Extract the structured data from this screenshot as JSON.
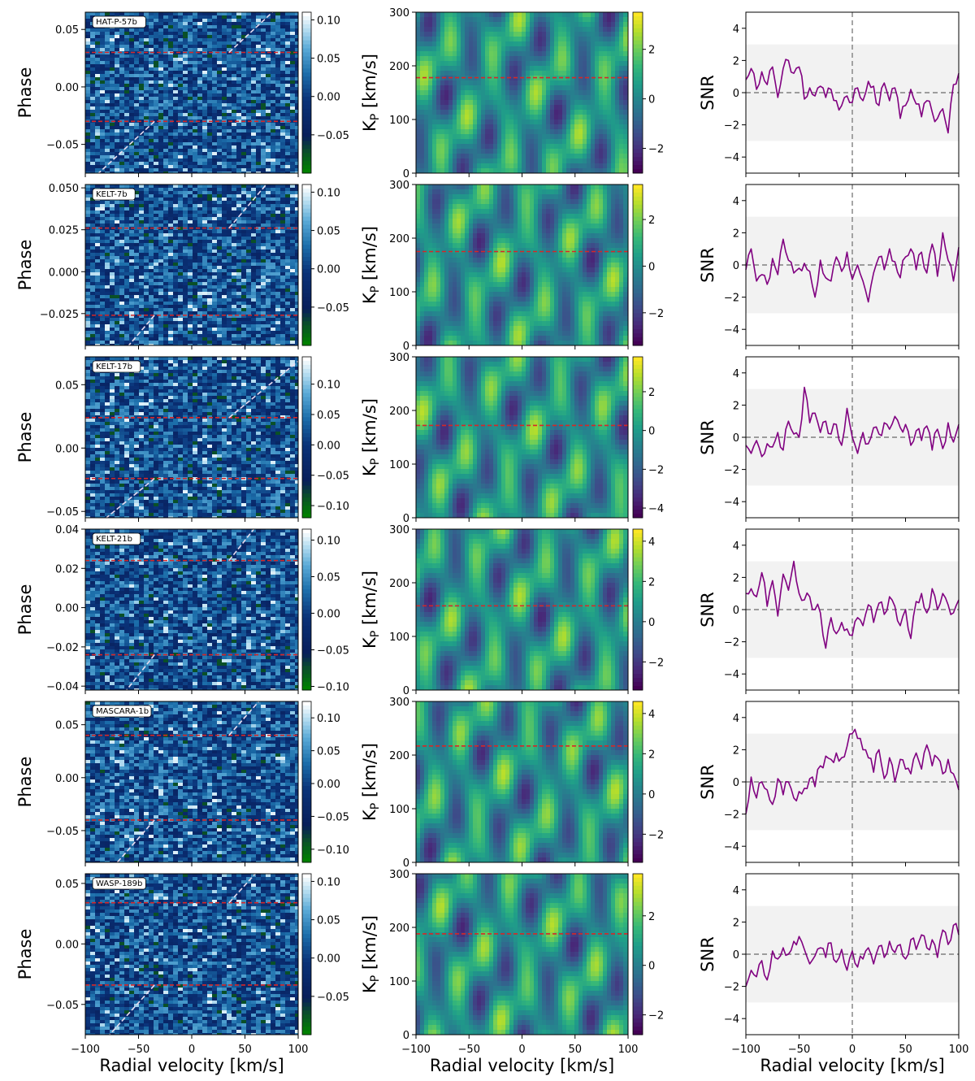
{
  "chart_data": {
    "type": "heatmap",
    "description_columns": [
      "Phase vs radial velocity residual map",
      "Kp vs radial velocity SNR map",
      "SNR vs radial velocity at expected Kp"
    ],
    "xlabel": "Radial velocity [km/s]",
    "xticks": [
      "−100",
      "−50",
      "0",
      "50",
      "100"
    ],
    "xlim": [
      -100,
      100
    ],
    "kp_ylabel": "K",
    "kp_ylabel_sub": "P",
    "kp_ylabel_unit": " [km/s]",
    "kp_ylim": [
      0,
      300
    ],
    "kp_yticks": [
      "0",
      "100",
      "200",
      "300"
    ],
    "snr_ylabel": "SNR",
    "snr_ylim": [
      -5,
      5
    ],
    "snr_yticks": [
      "−4",
      "−2",
      "0",
      "2",
      "4"
    ],
    "snr_band": [
      -3,
      3
    ],
    "phase_ylabel": "Phase",
    "colors": {
      "red_dashed": "#d62728",
      "white_dashed": "#e8dcf0",
      "snr_line": "#800080",
      "grey_dashed": "#808080",
      "band": "#f2f2f2"
    },
    "rows": [
      {
        "planet": "HAT-P-57b",
        "phase_ylim": [
          -0.075,
          0.065
        ],
        "phase_yticks": [
          {
            "v": 0.05,
            "t": "0.05"
          },
          {
            "v": 0.0,
            "t": "0.00"
          },
          {
            "v": -0.05,
            "t": "−0.05"
          }
        ],
        "phase_transit": [
          -0.03,
          0.03
        ],
        "phase_cbar": {
          "min": -0.1,
          "max": 0.11,
          "ticks": [
            {
              "v": 0.1,
              "t": "0.10"
            },
            {
              "v": 0.05,
              "t": "0.05"
            },
            {
              "v": 0.0,
              "t": "0.00"
            },
            {
              "v": -0.05,
              "t": "−0.05"
            }
          ]
        },
        "kp_expected": 178,
        "kp_cbar": {
          "min": -3,
          "max": 3.5,
          "ticks": [
            {
              "v": 2,
              "t": "2"
            },
            {
              "v": 0,
              "t": "0"
            },
            {
              "v": -2,
              "t": "−2"
            }
          ]
        },
        "snr_rv": [
          -100,
          -95,
          -90,
          -85,
          -80,
          -75,
          -70,
          -65,
          -60,
          -55,
          -50,
          -45,
          -40,
          -35,
          -30,
          -25,
          -20,
          -15,
          -10,
          -5,
          0,
          5,
          10,
          15,
          20,
          25,
          30,
          35,
          40,
          45,
          50,
          55,
          60,
          65,
          70,
          75,
          80,
          85,
          90,
          95,
          100
        ],
        "snr": [
          0.8,
          1.5,
          0.2,
          1.3,
          0.5,
          1.6,
          -0.3,
          1.5,
          2.0,
          1.2,
          1.6,
          -0.4,
          0.3,
          -0.2,
          0.4,
          -0.3,
          0.2,
          -0.5,
          -0.8,
          -0.2,
          -0.6,
          0.3,
          -0.5,
          0.7,
          0.4,
          -0.8,
          0.6,
          -0.5,
          0.3,
          -1.6,
          -0.8,
          0.2,
          -0.7,
          -1.5,
          -0.5,
          -1.2,
          -1.6,
          -1.0,
          -2.5,
          0.5,
          1.2
        ]
      },
      {
        "planet": "KELT-7b",
        "phase_ylim": [
          -0.044,
          0.052
        ],
        "phase_yticks": [
          {
            "v": 0.05,
            "t": "0.050"
          },
          {
            "v": 0.025,
            "t": "0.025"
          },
          {
            "v": 0.0,
            "t": "0.000"
          },
          {
            "v": -0.025,
            "t": "−0.025"
          }
        ],
        "phase_transit": [
          -0.026,
          0.026
        ],
        "phase_cbar": {
          "min": -0.1,
          "max": 0.11,
          "ticks": [
            {
              "v": 0.1,
              "t": "0.10"
            },
            {
              "v": 0.05,
              "t": "0.05"
            },
            {
              "v": 0.0,
              "t": "0.00"
            },
            {
              "v": -0.05,
              "t": "−0.05"
            }
          ]
        },
        "kp_expected": 175,
        "kp_cbar": {
          "min": -3.4,
          "max": 3.5,
          "ticks": [
            {
              "v": 2,
              "t": "2"
            },
            {
              "v": 0,
              "t": "0"
            },
            {
              "v": -2,
              "t": "−2"
            }
          ]
        },
        "snr_rv": [
          -100,
          -95,
          -90,
          -85,
          -80,
          -75,
          -70,
          -65,
          -60,
          -55,
          -50,
          -45,
          -40,
          -35,
          -30,
          -25,
          -20,
          -15,
          -10,
          -5,
          0,
          5,
          10,
          15,
          20,
          25,
          30,
          35,
          40,
          45,
          50,
          55,
          60,
          65,
          70,
          75,
          80,
          85,
          90,
          95,
          100
        ],
        "snr": [
          -0.3,
          1.0,
          -1.0,
          -0.6,
          -1.2,
          0.4,
          -0.6,
          1.6,
          0.3,
          -0.5,
          -0.2,
          0.1,
          -0.4,
          -2.0,
          0.3,
          -0.8,
          -1.0,
          0.5,
          -0.4,
          0.8,
          -0.9,
          0.0,
          -1.0,
          -2.3,
          -0.5,
          0.5,
          -0.3,
          1.0,
          0.2,
          -0.8,
          0.5,
          1.0,
          -0.3,
          0.8,
          -0.5,
          1.3,
          -0.7,
          2.0,
          0.3,
          -1.0,
          1.1
        ]
      },
      {
        "planet": "KELT-17b",
        "phase_ylim": [
          -0.055,
          0.072
        ],
        "phase_yticks": [
          {
            "v": 0.05,
            "t": "0.05"
          },
          {
            "v": 0.0,
            "t": "0.00"
          },
          {
            "v": -0.05,
            "t": "−0.05"
          }
        ],
        "phase_transit": [
          -0.024,
          0.024
        ],
        "phase_cbar": {
          "min": -0.12,
          "max": 0.145,
          "ticks": [
            {
              "v": 0.1,
              "t": "0.10"
            },
            {
              "v": 0.05,
              "t": "0.05"
            },
            {
              "v": 0.0,
              "t": "0.00"
            },
            {
              "v": -0.05,
              "t": "−0.05"
            },
            {
              "v": -0.1,
              "t": "−0.10"
            }
          ]
        },
        "kp_expected": 172,
        "kp_cbar": {
          "min": -4.5,
          "max": 3.8,
          "ticks": [
            {
              "v": 2,
              "t": "2"
            },
            {
              "v": 0,
              "t": "0"
            },
            {
              "v": -2,
              "t": "−2"
            },
            {
              "v": -4,
              "t": "−4"
            }
          ]
        },
        "snr_rv": [
          -100,
          -95,
          -90,
          -85,
          -80,
          -75,
          -70,
          -65,
          -60,
          -55,
          -50,
          -45,
          -40,
          -35,
          -30,
          -25,
          -20,
          -15,
          -10,
          -5,
          0,
          5,
          10,
          15,
          20,
          25,
          30,
          35,
          40,
          45,
          50,
          55,
          60,
          65,
          70,
          75,
          80,
          85,
          90,
          95,
          100
        ],
        "snr": [
          -0.5,
          -1.0,
          -0.2,
          -1.2,
          -0.4,
          -0.6,
          0.3,
          -0.8,
          1.0,
          0.2,
          0.0,
          3.1,
          0.9,
          1.5,
          0.3,
          1.0,
          0.2,
          0.8,
          -0.5,
          1.8,
          0.0,
          -1.0,
          0.3,
          -0.4,
          0.6,
          0.2,
          0.9,
          0.5,
          1.3,
          0.6,
          0.8,
          -0.5,
          0.4,
          -0.2,
          0.7,
          -0.8,
          0.5,
          -0.7,
          0.9,
          -0.3,
          0.8
        ]
      },
      {
        "planet": "KELT-21b",
        "phase_ylim": [
          -0.042,
          0.04
        ],
        "phase_yticks": [
          {
            "v": 0.04,
            "t": "0.04"
          },
          {
            "v": 0.02,
            "t": "0.02"
          },
          {
            "v": 0.0,
            "t": "0.00"
          },
          {
            "v": -0.02,
            "t": "−0.02"
          },
          {
            "v": -0.04,
            "t": "−0.04"
          }
        ],
        "phase_transit": [
          -0.024,
          0.024
        ],
        "phase_cbar": {
          "min": -0.105,
          "max": 0.115,
          "ticks": [
            {
              "v": 0.1,
              "t": "0.10"
            },
            {
              "v": 0.05,
              "t": "0.05"
            },
            {
              "v": 0.0,
              "t": "0.00"
            },
            {
              "v": -0.05,
              "t": "−0.05"
            },
            {
              "v": -0.1,
              "t": "−0.10"
            }
          ]
        },
        "kp_expected": 157,
        "kp_cbar": {
          "min": -3.4,
          "max": 4.6,
          "ticks": [
            {
              "v": 4,
              "t": "4"
            },
            {
              "v": 2,
              "t": "2"
            },
            {
              "v": 0,
              "t": "0"
            },
            {
              "v": -2,
              "t": "−2"
            }
          ]
        },
        "snr_rv": [
          -100,
          -95,
          -90,
          -85,
          -80,
          -75,
          -70,
          -65,
          -60,
          -55,
          -50,
          -45,
          -40,
          -35,
          -30,
          -25,
          -20,
          -15,
          -10,
          -5,
          0,
          5,
          10,
          15,
          20,
          25,
          30,
          35,
          40,
          45,
          50,
          55,
          60,
          65,
          70,
          75,
          80,
          85,
          90,
          95,
          100
        ],
        "snr": [
          1.0,
          1.3,
          0.8,
          2.3,
          0.2,
          1.8,
          -0.4,
          2.2,
          1.2,
          3.0,
          1.0,
          0.6,
          0.8,
          0.0,
          -0.2,
          -2.4,
          -0.5,
          -1.5,
          -0.8,
          -1.2,
          -1.6,
          -0.5,
          -1.0,
          0.3,
          -0.8,
          0.4,
          -0.3,
          0.8,
          0.2,
          -1.0,
          0.0,
          -1.8,
          0.5,
          1.0,
          -0.2,
          1.3,
          0.0,
          1.0,
          0.3,
          -0.2,
          0.6
        ]
      },
      {
        "planet": "MASCARA-1b",
        "phase_ylim": [
          -0.08,
          0.072
        ],
        "phase_yticks": [
          {
            "v": 0.05,
            "t": "0.05"
          },
          {
            "v": 0.0,
            "t": "0.00"
          },
          {
            "v": -0.05,
            "t": "−0.05"
          }
        ],
        "phase_transit": [
          -0.04,
          0.04
        ],
        "phase_cbar": {
          "min": -0.12,
          "max": 0.125,
          "ticks": [
            {
              "v": 0.1,
              "t": "0.10"
            },
            {
              "v": 0.05,
              "t": "0.05"
            },
            {
              "v": 0.0,
              "t": "0.00"
            },
            {
              "v": -0.05,
              "t": "−0.05"
            },
            {
              "v": -0.1,
              "t": "−0.10"
            }
          ]
        },
        "kp_expected": 217,
        "kp_cbar": {
          "min": -3.4,
          "max": 4.6,
          "ticks": [
            {
              "v": 4,
              "t": "4"
            },
            {
              "v": 2,
              "t": "2"
            },
            {
              "v": 0,
              "t": "0"
            },
            {
              "v": -2,
              "t": "−2"
            }
          ]
        },
        "snr_rv": [
          -100,
          -95,
          -90,
          -85,
          -80,
          -75,
          -70,
          -65,
          -60,
          -55,
          -50,
          -45,
          -40,
          -35,
          -30,
          -25,
          -20,
          -15,
          -10,
          -5,
          0,
          5,
          10,
          15,
          20,
          25,
          30,
          35,
          40,
          45,
          50,
          55,
          60,
          65,
          70,
          75,
          80,
          85,
          90,
          95,
          100
        ],
        "snr": [
          -2.0,
          0.3,
          -1.0,
          0.0,
          -0.5,
          -1.4,
          0.2,
          -0.8,
          0.0,
          -1.0,
          -0.6,
          -0.4,
          0.2,
          -0.3,
          1.0,
          1.6,
          1.4,
          1.8,
          1.5,
          2.2,
          3.0,
          2.7,
          2.0,
          1.5,
          0.6,
          2.0,
          0.2,
          1.5,
          0.0,
          1.4,
          0.8,
          0.5,
          1.8,
          0.8,
          2.3,
          1.0,
          1.5,
          0.5,
          1.4,
          0.5,
          -0.5
        ]
      },
      {
        "planet": "WASP-189b",
        "phase_ylim": [
          -0.075,
          0.058
        ],
        "phase_yticks": [
          {
            "v": 0.05,
            "t": "0.05"
          },
          {
            "v": 0.0,
            "t": "0.00"
          },
          {
            "v": -0.05,
            "t": "−0.05"
          }
        ],
        "phase_transit": [
          -0.034,
          0.034
        ],
        "phase_cbar": {
          "min": -0.1,
          "max": 0.11,
          "ticks": [
            {
              "v": 0.1,
              "t": "0.10"
            },
            {
              "v": 0.05,
              "t": "0.05"
            },
            {
              "v": 0.0,
              "t": "0.00"
            },
            {
              "v": -0.05,
              "t": "−0.05"
            }
          ]
        },
        "kp_expected": 188,
        "kp_cbar": {
          "min": -2.8,
          "max": 3.7,
          "ticks": [
            {
              "v": 2,
              "t": "2"
            },
            {
              "v": 0,
              "t": "0"
            },
            {
              "v": -2,
              "t": "−2"
            }
          ]
        },
        "snr_rv": [
          -100,
          -95,
          -90,
          -85,
          -80,
          -75,
          -70,
          -65,
          -60,
          -55,
          -50,
          -45,
          -40,
          -35,
          -30,
          -25,
          -20,
          -15,
          -10,
          -5,
          0,
          5,
          10,
          15,
          20,
          25,
          30,
          35,
          40,
          45,
          50,
          55,
          60,
          65,
          70,
          75,
          80,
          85,
          90,
          95,
          100
        ],
        "snr": [
          -2.0,
          -1.0,
          -1.4,
          -0.4,
          -1.6,
          0.2,
          -0.3,
          0.4,
          0.0,
          0.8,
          1.1,
          0.3,
          -0.6,
          -0.1,
          0.4,
          -0.2,
          0.7,
          -0.5,
          0.3,
          -1.0,
          0.2,
          -0.8,
          -0.3,
          0.4,
          -0.6,
          0.5,
          -0.2,
          0.8,
          0.1,
          0.6,
          -0.3,
          0.9,
          0.3,
          1.2,
          0.4,
          0.9,
          -0.2,
          1.5,
          0.6,
          1.8,
          1.2
        ]
      }
    ]
  }
}
